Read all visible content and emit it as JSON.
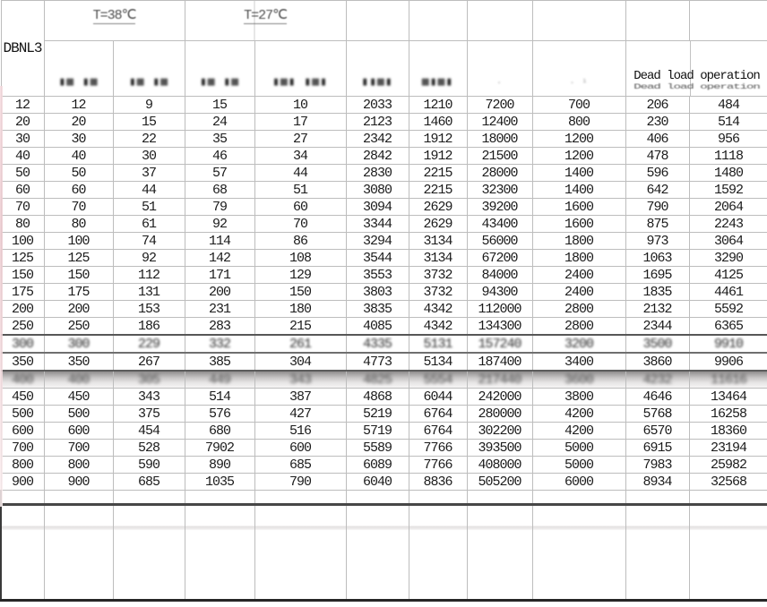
{
  "header": {
    "model_label": "DBNL3",
    "temp_left": "T=38℃",
    "temp_right": "T=27℃",
    "dead_load_label": "Dead load operation",
    "column_smears": [
      "▮▦ ▮▦",
      "▮▦ ▮▦",
      "▮▦ ▮▦",
      "▮▦▮ ▮▦▮",
      "▮▮▦▮",
      "▦▮▦▮",
      "·",
      "∙ ¹"
    ]
  },
  "table": {
    "rows": [
      [
        12,
        12,
        9,
        15,
        10,
        2033,
        1210,
        7200,
        700,
        206,
        484
      ],
      [
        20,
        20,
        15,
        24,
        17,
        2123,
        1460,
        12400,
        800,
        230,
        514
      ],
      [
        30,
        30,
        22,
        35,
        27,
        2342,
        1912,
        18000,
        1200,
        406,
        956
      ],
      [
        40,
        40,
        30,
        46,
        34,
        2842,
        1912,
        21500,
        1200,
        478,
        1118
      ],
      [
        50,
        50,
        37,
        57,
        44,
        2830,
        2215,
        28000,
        1400,
        596,
        1480
      ],
      [
        60,
        60,
        44,
        68,
        51,
        3080,
        2215,
        32300,
        1400,
        642,
        1592
      ],
      [
        70,
        70,
        51,
        79,
        60,
        3094,
        2629,
        39200,
        1600,
        790,
        2064
      ],
      [
        80,
        80,
        61,
        92,
        70,
        3344,
        2629,
        43400,
        1600,
        875,
        2243
      ],
      [
        100,
        100,
        74,
        114,
        86,
        3294,
        3134,
        56000,
        1800,
        973,
        3064
      ],
      [
        125,
        125,
        92,
        142,
        108,
        3544,
        3134,
        67200,
        1800,
        1063,
        3290
      ],
      [
        150,
        150,
        112,
        171,
        129,
        3553,
        3732,
        84000,
        2400,
        1695,
        4125
      ],
      [
        175,
        175,
        131,
        200,
        150,
        3803,
        3732,
        94300,
        2400,
        1835,
        4461
      ],
      [
        200,
        200,
        153,
        231,
        180,
        3835,
        4342,
        112000,
        2800,
        2132,
        5592
      ],
      [
        250,
        250,
        186,
        283,
        215,
        4085,
        4342,
        134300,
        2800,
        2344,
        6365
      ],
      [
        300,
        300,
        229,
        332,
        261,
        4335,
        5131,
        157240,
        3200,
        3500,
        9910
      ],
      [
        350,
        350,
        267,
        385,
        304,
        4773,
        5134,
        187400,
        3400,
        3860,
        9906
      ],
      [
        400,
        400,
        305,
        449,
        343,
        4825,
        5554,
        217440,
        3600,
        4232,
        11616
      ],
      [
        450,
        450,
        343,
        514,
        387,
        4868,
        6044,
        242000,
        3800,
        4646,
        13464
      ],
      [
        500,
        500,
        375,
        576,
        427,
        5219,
        6764,
        280000,
        4200,
        5768,
        16258
      ],
      [
        600,
        600,
        454,
        680,
        516,
        5719,
        6764,
        302200,
        4200,
        6570,
        18360
      ],
      [
        700,
        700,
        528,
        7902,
        600,
        5589,
        7766,
        393500,
        5000,
        6915,
        23194
      ],
      [
        800,
        800,
        590,
        890,
        685,
        6089,
        7766,
        408000,
        5000,
        7983,
        25982
      ],
      [
        900,
        900,
        685,
        1035,
        790,
        6040,
        8836,
        505200,
        6000,
        8934,
        32568
      ]
    ],
    "smeared_rows": [
      14
    ],
    "band_rows": [
      16
    ]
  }
}
